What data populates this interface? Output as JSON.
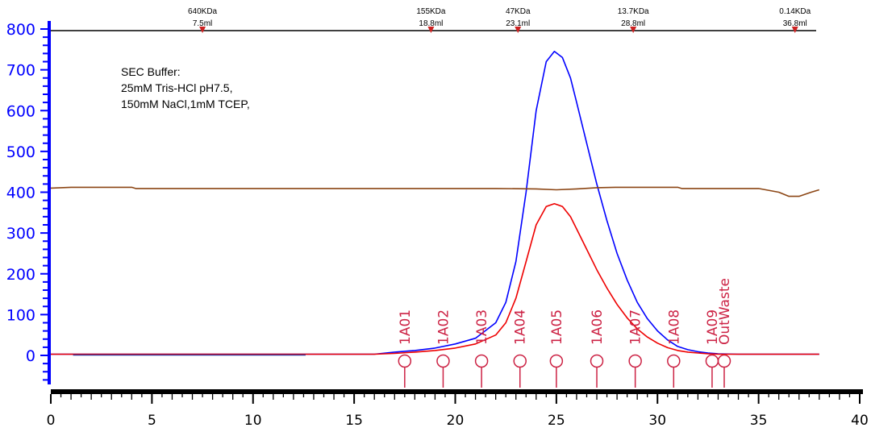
{
  "chart_data": {
    "type": "line",
    "title": "",
    "xlabel": "",
    "ylabel": "",
    "xlim": [
      0,
      40
    ],
    "ylim": [
      -80,
      810
    ],
    "x_ticks": [
      "0",
      "5",
      "10",
      "15",
      "20",
      "25",
      "30",
      "35",
      "40"
    ],
    "y_ticks": [
      "0",
      "100",
      "200",
      "300",
      "400",
      "500",
      "600",
      "700",
      "800"
    ],
    "annotation_lines": [
      "SEC Buffer:",
      "25mM Tris-HCl pH7.5,",
      "150mM NaCl,1mM TCEP,"
    ],
    "calibration_markers": [
      {
        "mw": "640KDa",
        "vol_label": "7.5ml",
        "x": 7.5
      },
      {
        "mw": "155KDa",
        "vol_label": "18.8ml",
        "x": 18.8
      },
      {
        "mw": "47KDa",
        "vol_label": "23.1ml",
        "x": 23.1
      },
      {
        "mw": "13.7KDa",
        "vol_label": "28.8ml",
        "x": 28.8
      },
      {
        "mw": "0.14KDa",
        "vol_label": "36.8ml",
        "x": 36.8
      }
    ],
    "fractions": [
      {
        "label": "1A01",
        "x": 17.5
      },
      {
        "label": "1A02",
        "x": 19.4
      },
      {
        "label": "1A03",
        "x": 21.3
      },
      {
        "label": "1A04",
        "x": 23.2
      },
      {
        "label": "1A05",
        "x": 25.0
      },
      {
        "label": "1A06",
        "x": 27.0
      },
      {
        "label": "1A07",
        "x": 28.9
      },
      {
        "label": "1A08",
        "x": 30.8
      },
      {
        "label": "1A09",
        "x": 32.7
      },
      {
        "label": "OutWaste",
        "x": 33.3
      }
    ],
    "series": [
      {
        "color": "#0000ff",
        "x": [
          0,
          16,
          17,
          18,
          19,
          20,
          21,
          22,
          22.5,
          23,
          23.5,
          24,
          24.5,
          24.9,
          25.3,
          25.7,
          26,
          26.5,
          27,
          27.5,
          28,
          28.5,
          29,
          29.5,
          30,
          30.5,
          31,
          31.5,
          32,
          32.5,
          33,
          34,
          36,
          38
        ],
        "y": [
          3,
          3,
          8,
          12,
          18,
          28,
          42,
          80,
          130,
          230,
          400,
          600,
          720,
          745,
          730,
          680,
          620,
          520,
          420,
          330,
          250,
          185,
          130,
          90,
          60,
          38,
          22,
          14,
          9,
          6,
          4,
          3,
          3,
          3
        ]
      },
      {
        "color": "#ee0000",
        "x": [
          0,
          16,
          17,
          18,
          19,
          20,
          21,
          22,
          22.5,
          23,
          23.5,
          24,
          24.5,
          24.9,
          25.3,
          25.7,
          26,
          26.5,
          27,
          27.5,
          28,
          28.5,
          29,
          29.5,
          30,
          30.5,
          31,
          31.5,
          32,
          32.5,
          33,
          34,
          36,
          38
        ],
        "y": [
          3,
          3,
          5,
          8,
          12,
          18,
          28,
          50,
          80,
          140,
          230,
          320,
          365,
          372,
          365,
          340,
          310,
          260,
          210,
          165,
          125,
          92,
          65,
          45,
          30,
          19,
          12,
          8,
          6,
          4,
          3,
          3,
          3,
          3
        ]
      },
      {
        "color": "#8b4513",
        "x": [
          0,
          1,
          4,
          4.2,
          12,
          22,
          24,
          25,
          26,
          27,
          28,
          31,
          31.2,
          35,
          36,
          36.5,
          37,
          37.6,
          38
        ],
        "y": [
          410,
          412,
          412,
          409,
          409,
          409,
          408,
          406,
          408,
          411,
          412,
          412,
          409,
          409,
          400,
          390,
          390,
          400,
          406
        ]
      }
    ]
  }
}
